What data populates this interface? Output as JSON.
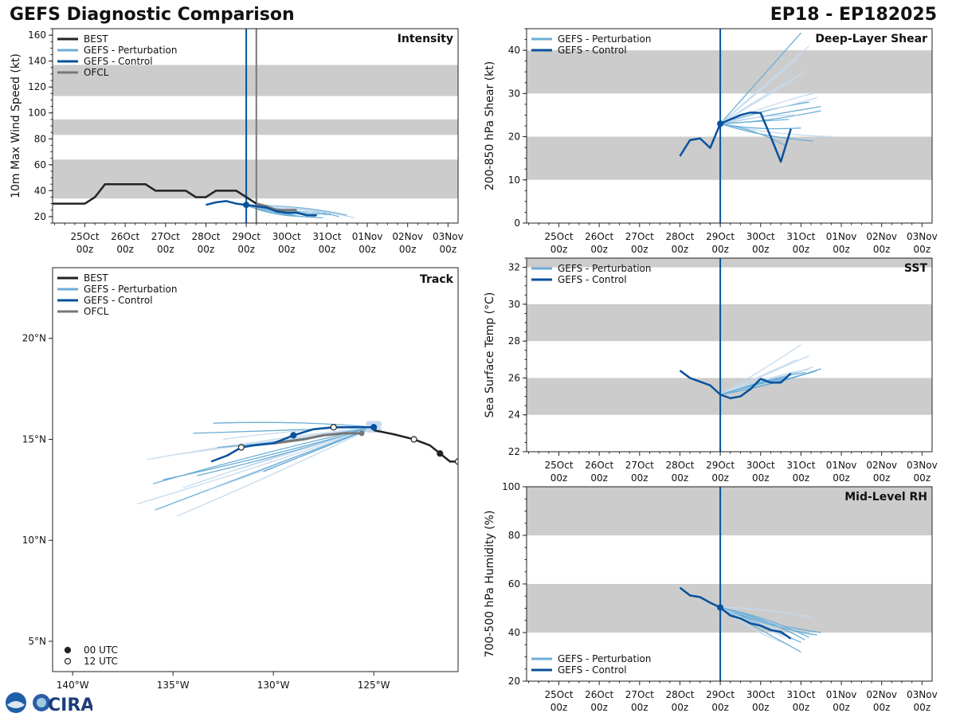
{
  "header": {
    "title": "GEFS Diagnostic Comparison",
    "storm": "EP18 - EP182025"
  },
  "logos": {
    "agency": "CIRA"
  },
  "colors": {
    "best": "#222222",
    "perturbation": "#6baed6",
    "perturbation_light": "#c6dbef",
    "control": "#08519c",
    "ofcl": "#777777",
    "band": "#cccccc"
  },
  "time_axis": {
    "ticks": [
      {
        "day": 25,
        "top": "25Oct",
        "bottom": "00z"
      },
      {
        "day": 26,
        "top": "26Oct",
        "bottom": "00z"
      },
      {
        "day": 27,
        "top": "27Oct",
        "bottom": "00z"
      },
      {
        "day": 28,
        "top": "28Oct",
        "bottom": "00z"
      },
      {
        "day": 29,
        "top": "29Oct",
        "bottom": "00z"
      },
      {
        "day": 30,
        "top": "30Oct",
        "bottom": "00z"
      },
      {
        "day": 31,
        "top": "31Oct",
        "bottom": "00z"
      },
      {
        "day": 32,
        "top": "01Nov",
        "bottom": "00z"
      },
      {
        "day": 33,
        "top": "02Nov",
        "bottom": "00z"
      },
      {
        "day": 34,
        "top": "03Nov",
        "bottom": "00z"
      }
    ],
    "xlim": [
      24.2,
      34.25
    ],
    "init_day": 29.0
  },
  "chart_data": [
    {
      "id": "intensity",
      "type": "line",
      "title": "Intensity",
      "ylabel": "10m Max Wind Speed (kt)",
      "ylim": [
        15,
        165
      ],
      "yticks": [
        20,
        40,
        60,
        80,
        100,
        120,
        140,
        160
      ],
      "bands": [
        [
          34,
          64
        ],
        [
          83,
          95
        ],
        [
          113,
          137
        ]
      ],
      "legend": [
        {
          "label": "BEST",
          "color": "#222222"
        },
        {
          "label": "GEFS - Perturbation",
          "color": "#6baed6"
        },
        {
          "label": "GEFS - Control",
          "color": "#08519c"
        },
        {
          "label": "OFCL",
          "color": "#777777"
        }
      ],
      "vlines": [
        {
          "x": 29.0,
          "color": "#08519c"
        },
        {
          "x": 29.25,
          "color": "#777777"
        }
      ],
      "best": {
        "x": [
          24.0,
          24.25,
          24.5,
          24.75,
          25.0,
          25.25,
          25.5,
          25.75,
          26.0,
          26.25,
          26.5,
          26.75,
          27.0,
          27.25,
          27.5,
          27.75,
          28.0,
          28.25,
          28.5,
          28.75,
          29.0,
          29.25
        ],
        "y": [
          30,
          30,
          30,
          30,
          30,
          35,
          45,
          45,
          45,
          45,
          45,
          40,
          40,
          40,
          40,
          35,
          35,
          40,
          40,
          40,
          35,
          30
        ]
      },
      "control": {
        "x": [
          28.0,
          28.25,
          28.5,
          28.75,
          29.0,
          29.25,
          29.5,
          29.75,
          30.0,
          30.25,
          30.5,
          30.75
        ],
        "y": [
          29,
          31,
          32,
          30,
          29,
          28,
          27,
          24,
          23,
          23,
          21,
          21
        ]
      },
      "control_marker": {
        "x": 29.0,
        "y": 29
      },
      "ofcl": {
        "x": [
          29.25,
          29.5,
          29.75,
          30.0,
          30.25
        ],
        "y": [
          30,
          28,
          25,
          25,
          25
        ]
      },
      "ens_start": [
        29.0,
        29
      ],
      "members": [
        {
          "ex": 30.5,
          "ey": 22
        },
        {
          "ex": 30.7,
          "ey": 20
        },
        {
          "ex": 31.1,
          "ey": 21
        },
        {
          "ex": 30.9,
          "ey": 19
        },
        {
          "ex": 30.3,
          "ey": 23
        },
        {
          "ex": 31.3,
          "ey": 20
        },
        {
          "ex": 30.6,
          "ey": 24
        },
        {
          "ex": 30.8,
          "ey": 22
        },
        {
          "ex": 31.0,
          "ey": 21
        },
        {
          "ex": 30.4,
          "ey": 20
        },
        {
          "ex": 31.2,
          "ey": 23
        },
        {
          "ex": 31.5,
          "ey": 21
        },
        {
          "ex": 30.9,
          "ey": 23
        },
        {
          "ex": 30.2,
          "ey": 21
        },
        {
          "ex": 31.7,
          "ey": 19
        },
        {
          "ex": 31.1,
          "ey": 22
        }
      ]
    },
    {
      "id": "shear",
      "type": "line",
      "title": "Deep-Layer Shear",
      "ylabel": "200-850 hPa Shear (kt)",
      "ylim": [
        0,
        45
      ],
      "yticks": [
        0,
        10,
        20,
        30,
        40
      ],
      "bands": [
        [
          10,
          20
        ],
        [
          30,
          40
        ]
      ],
      "legend": [
        {
          "label": "GEFS - Perturbation",
          "color": "#6baed6"
        },
        {
          "label": "GEFS - Control",
          "color": "#08519c"
        }
      ],
      "vlines": [
        {
          "x": 29.0,
          "color": "#08519c"
        }
      ],
      "control": {
        "x": [
          28.0,
          28.25,
          28.5,
          28.75,
          29.0,
          29.25,
          29.5,
          29.75,
          30.0,
          30.25,
          30.5,
          30.75
        ],
        "y": [
          15.5,
          19.2,
          19.6,
          17.4,
          23.0,
          24.0,
          25.0,
          25.6,
          25.5,
          20.0,
          14.2,
          21.8
        ]
      },
      "control_marker": {
        "x": 29.0,
        "y": 23.0
      },
      "ens_start": [
        29.0,
        23.0
      ],
      "members": [
        {
          "ex": 30.9,
          "ey": 38
        },
        {
          "ex": 31.0,
          "ey": 44
        },
        {
          "ex": 31.3,
          "ey": 30
        },
        {
          "ex": 31.5,
          "ey": 26
        },
        {
          "ex": 30.8,
          "ey": 33
        },
        {
          "ex": 31.2,
          "ey": 28
        },
        {
          "ex": 31.8,
          "ey": 20
        },
        {
          "ex": 30.7,
          "ey": 24
        },
        {
          "ex": 31.1,
          "ey": 35
        },
        {
          "ex": 31.0,
          "ey": 22
        },
        {
          "ex": 31.4,
          "ey": 29
        },
        {
          "ex": 30.6,
          "ey": 18
        },
        {
          "ex": 31.2,
          "ey": 41
        },
        {
          "ex": 31.5,
          "ey": 27
        },
        {
          "ex": 30.9,
          "ey": 25
        },
        {
          "ex": 31.3,
          "ey": 19
        }
      ]
    },
    {
      "id": "track",
      "type": "line",
      "title": "Track",
      "xlim": [
        -141,
        -120.8
      ],
      "ylim": [
        3.5,
        23.5
      ],
      "xticks": [
        {
          "v": -140,
          "label": "140°W"
        },
        {
          "v": -135,
          "label": "135°W"
        },
        {
          "v": -130,
          "label": "130°W"
        },
        {
          "v": -125,
          "label": "125°W"
        }
      ],
      "yticks": [
        {
          "v": 5,
          "label": "5°N"
        },
        {
          "v": 10,
          "label": "10°N"
        },
        {
          "v": 15,
          "label": "15°N"
        },
        {
          "v": 20,
          "label": "20°N"
        }
      ],
      "legend": [
        {
          "label": "BEST",
          "color": "#222222"
        },
        {
          "label": "GEFS - Perturbation",
          "color": "#6baed6"
        },
        {
          "label": "GEFS - Control",
          "color": "#08519c"
        },
        {
          "label": "OFCL",
          "color": "#777777"
        }
      ],
      "marker_legend": [
        "00 UTC",
        "12 UTC"
      ],
      "best": {
        "lon": [
          -120.8,
          -121.2,
          -121.7,
          -122.2,
          -123.0,
          -124.0,
          -125.0
        ],
        "lat": [
          13.9,
          13.9,
          14.3,
          14.7,
          15.0,
          15.25,
          15.45
        ]
      },
      "best_markers": [
        {
          "lon": -120.8,
          "lat": 13.9,
          "fill": "open"
        },
        {
          "lon": -121.7,
          "lat": 14.3,
          "fill": "solid"
        },
        {
          "lon": -123.0,
          "lat": 15.0,
          "fill": "open"
        }
      ],
      "control": {
        "lon": [
          -125.0,
          -126.0,
          -127.0,
          -128.0,
          -129.0,
          -130.0,
          -131.0,
          -131.6,
          -132.3,
          -133.1
        ],
        "lat": [
          15.6,
          15.6,
          15.6,
          15.5,
          15.2,
          14.8,
          14.7,
          14.6,
          14.2,
          13.9
        ]
      },
      "control_markers": [
        {
          "lon": -125.0,
          "lat": 15.6,
          "fill": "solid"
        },
        {
          "lon": -127.0,
          "lat": 15.6,
          "fill": "open"
        },
        {
          "lon": -129.0,
          "lat": 15.2,
          "fill": "solid"
        },
        {
          "lon": -131.6,
          "lat": 14.6,
          "fill": "open"
        }
      ],
      "ofcl": {
        "lon": [
          -125.6,
          -126.5,
          -127.5,
          -128.5,
          -130.0
        ],
        "lat": [
          15.3,
          15.3,
          15.2,
          15.0,
          14.8
        ]
      },
      "ofcl_marker": {
        "lon": -125.6,
        "lat": 15.3
      },
      "ens_start": [
        -125.0,
        15.6
      ],
      "members": [
        {
          "ex": -136.8,
          "ey": 11.8
        },
        {
          "ex": -135.9,
          "ey": 11.5
        },
        {
          "ex": -134.5,
          "ey": 12.6
        },
        {
          "ex": -133.8,
          "ey": 13.2
        },
        {
          "ex": -135.2,
          "ey": 14.2
        },
        {
          "ex": -136.0,
          "ey": 12.8
        },
        {
          "ex": -133.2,
          "ey": 12.5
        },
        {
          "ex": -134.0,
          "ey": 15.3
        },
        {
          "ex": -132.5,
          "ey": 15.0
        },
        {
          "ex": -135.5,
          "ey": 13.0
        },
        {
          "ex": -131.8,
          "ey": 13.5
        },
        {
          "ex": -133.0,
          "ey": 15.8
        },
        {
          "ex": -134.8,
          "ey": 11.2
        },
        {
          "ex": -130.5,
          "ey": 13.4
        },
        {
          "ex": -136.3,
          "ey": 14.0
        },
        {
          "ex": -132.8,
          "ey": 14.6
        }
      ]
    },
    {
      "id": "sst",
      "type": "line",
      "title": "SST",
      "ylabel": "Sea Surface Temp (°C)",
      "ylim": [
        22,
        32.5
      ],
      "yticks": [
        22,
        24,
        26,
        28,
        30,
        32
      ],
      "bands": [
        [
          24,
          26
        ],
        [
          28,
          30
        ],
        [
          32,
          32.5
        ]
      ],
      "legend": [
        {
          "label": "GEFS - Perturbation",
          "color": "#6baed6"
        },
        {
          "label": "GEFS - Control",
          "color": "#08519c"
        }
      ],
      "vlines": [
        {
          "x": 29.0,
          "color": "#08519c"
        }
      ],
      "control": {
        "x": [
          28.0,
          28.25,
          28.5,
          28.75,
          29.0,
          29.25,
          29.5,
          29.75,
          30.0,
          30.25,
          30.5,
          30.75
        ],
        "y": [
          26.4,
          26.0,
          25.8,
          25.6,
          25.1,
          24.9,
          25.0,
          25.4,
          25.95,
          25.75,
          25.75,
          26.25
        ]
      },
      "ens_start": [
        29.0,
        25.1
      ],
      "members": [
        {
          "ex": 31.0,
          "ey": 27.8
        },
        {
          "ex": 31.2,
          "ey": 26.5
        },
        {
          "ex": 30.8,
          "ey": 26.2
        },
        {
          "ex": 31.5,
          "ey": 26.5
        },
        {
          "ex": 30.9,
          "ey": 27.0
        },
        {
          "ex": 31.1,
          "ey": 26.3
        },
        {
          "ex": 31.3,
          "ey": 26.6
        },
        {
          "ex": 30.7,
          "ey": 26.1
        },
        {
          "ex": 31.0,
          "ey": 26.4
        },
        {
          "ex": 31.4,
          "ey": 26.4
        },
        {
          "ex": 31.2,
          "ey": 27.2
        },
        {
          "ex": 30.8,
          "ey": 26.0
        }
      ]
    },
    {
      "id": "rh",
      "type": "line",
      "title": "Mid-Level RH",
      "ylabel": "700-500 hPa Humidity (%)",
      "ylim": [
        20,
        100
      ],
      "yticks": [
        20,
        40,
        60,
        80,
        100
      ],
      "bands": [
        [
          40,
          60
        ],
        [
          80,
          100
        ]
      ],
      "legend": [
        {
          "label": "GEFS - Perturbation",
          "color": "#6baed6"
        },
        {
          "label": "GEFS - Control",
          "color": "#08519c"
        }
      ],
      "vlines": [
        {
          "x": 29.0,
          "color": "#08519c"
        }
      ],
      "control": {
        "x": [
          28.0,
          28.25,
          28.5,
          28.75,
          29.0,
          29.25,
          29.5,
          29.75,
          30.0,
          30.25,
          30.5,
          30.75
        ],
        "y": [
          58.5,
          55.3,
          54.6,
          52.3,
          50.3,
          47.0,
          45.8,
          43.8,
          42.8,
          41.0,
          40.3,
          37.5
        ]
      },
      "control_marker": {
        "x": 29.0,
        "y": 50.3
      },
      "ens_start": [
        29.0,
        50.3
      ],
      "members": [
        {
          "ex": 31.3,
          "ey": 39
        },
        {
          "ex": 31.0,
          "ey": 36
        },
        {
          "ex": 30.8,
          "ey": 37
        },
        {
          "ex": 31.5,
          "ey": 40
        },
        {
          "ex": 30.9,
          "ey": 41
        },
        {
          "ex": 31.2,
          "ey": 38
        },
        {
          "ex": 30.7,
          "ey": 35
        },
        {
          "ex": 31.0,
          "ey": 32
        },
        {
          "ex": 31.3,
          "ey": 46
        },
        {
          "ex": 31.4,
          "ey": 39
        },
        {
          "ex": 30.6,
          "ey": 38
        },
        {
          "ex": 31.1,
          "ey": 37
        }
      ]
    }
  ]
}
